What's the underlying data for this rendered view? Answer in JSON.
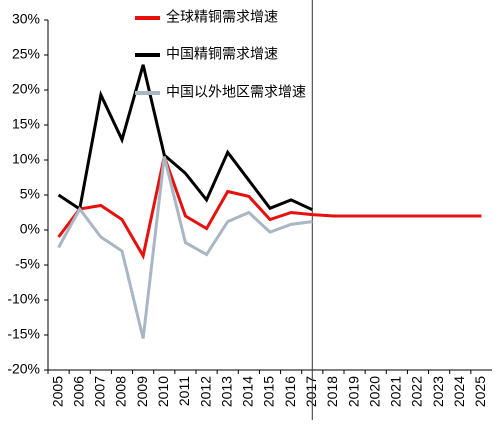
{
  "chart_data": {
    "type": "line",
    "categories": [
      "2005",
      "2006",
      "2007",
      "2008",
      "2009",
      "2010",
      "2011",
      "2012",
      "2013",
      "2014",
      "2015",
      "2016",
      "2017",
      "2018",
      "2019",
      "2020",
      "2021",
      "2022",
      "2023",
      "2024",
      "2025"
    ],
    "series": [
      {
        "name": "全球精铜需求增速",
        "color": "#e8100f",
        "values": [
          -1,
          3,
          3.5,
          1.5,
          -3.7,
          10.5,
          2,
          0.2,
          5.5,
          4.8,
          1.5,
          2.5,
          2.2,
          2,
          2,
          2,
          2,
          2,
          2,
          2,
          2
        ]
      },
      {
        "name": "中国精铜需求增速",
        "color": "#000000",
        "values": [
          5,
          3,
          19.3,
          12.9,
          23.6,
          10.7,
          8.1,
          4.3,
          11.1,
          7.1,
          3.1,
          4.3,
          2.9,
          null,
          null,
          null,
          null,
          null,
          null,
          null,
          null
        ]
      },
      {
        "name": "中国以外地区需求增速",
        "color": "#a9b6c4",
        "values": [
          -2.5,
          3,
          -1,
          -3,
          -15.5,
          10.5,
          -1.8,
          -3.5,
          1.2,
          2.5,
          -0.3,
          0.8,
          1.2,
          null,
          null,
          null,
          null,
          null,
          null,
          null,
          null
        ]
      }
    ],
    "ylim": [
      -20,
      30
    ],
    "yticks": [
      {
        "value": -20,
        "label": "-20%"
      },
      {
        "value": -15,
        "label": "-15%"
      },
      {
        "value": -10,
        "label": "-10%"
      },
      {
        "value": -5,
        "label": "-5%"
      },
      {
        "value": 0,
        "label": "0%"
      },
      {
        "value": 5,
        "label": "5%"
      },
      {
        "value": 10,
        "label": "10%"
      },
      {
        "value": 15,
        "label": "15%"
      },
      {
        "value": 20,
        "label": "20%"
      },
      {
        "value": 25,
        "label": "25%"
      },
      {
        "value": 30,
        "label": "30%"
      }
    ],
    "grid": false
  }
}
